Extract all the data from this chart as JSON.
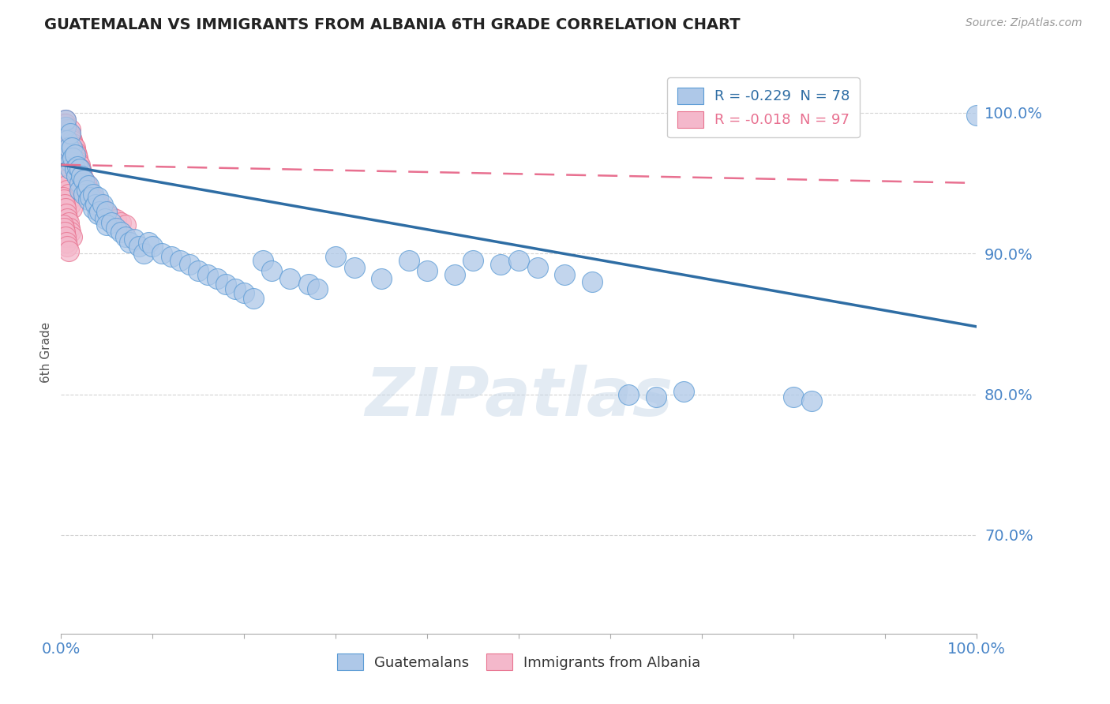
{
  "title": "GUATEMALAN VS IMMIGRANTS FROM ALBANIA 6TH GRADE CORRELATION CHART",
  "source": "Source: ZipAtlas.com",
  "ylabel": "6th Grade",
  "ytick_labels": [
    "70.0%",
    "80.0%",
    "90.0%",
    "100.0%"
  ],
  "ytick_values": [
    0.7,
    0.8,
    0.9,
    1.0
  ],
  "legend_blue_label": "R = -0.229  N = 78",
  "legend_pink_label": "R = -0.018  N = 97",
  "blue_color": "#aec8e8",
  "blue_edge": "#5b9bd5",
  "pink_color": "#f4b8cb",
  "pink_edge": "#e8728f",
  "blue_line_color": "#2e6da4",
  "pink_line_color": "#e87090",
  "watermark_color": "#c8d8e8",
  "xlim": [
    0.0,
    1.0
  ],
  "ylim": [
    0.63,
    1.03
  ],
  "blue_trend_x0": 0.0,
  "blue_trend_y0": 0.963,
  "blue_trend_x1": 1.0,
  "blue_trend_y1": 0.848,
  "pink_trend_x0": 0.0,
  "pink_trend_y0": 0.963,
  "pink_trend_x1": 1.0,
  "pink_trend_y1": 0.95,
  "blue_x": [
    0.005,
    0.005,
    0.005,
    0.007,
    0.008,
    0.01,
    0.01,
    0.01,
    0.012,
    0.013,
    0.015,
    0.015,
    0.017,
    0.018,
    0.02,
    0.02,
    0.02,
    0.022,
    0.025,
    0.025,
    0.028,
    0.03,
    0.03,
    0.032,
    0.035,
    0.035,
    0.038,
    0.04,
    0.04,
    0.042,
    0.045,
    0.048,
    0.05,
    0.05,
    0.055,
    0.06,
    0.065,
    0.07,
    0.075,
    0.08,
    0.085,
    0.09,
    0.095,
    0.1,
    0.11,
    0.12,
    0.13,
    0.14,
    0.15,
    0.16,
    0.17,
    0.18,
    0.19,
    0.2,
    0.21,
    0.22,
    0.23,
    0.25,
    0.27,
    0.28,
    0.3,
    0.32,
    0.35,
    0.38,
    0.4,
    0.43,
    0.45,
    0.48,
    0.5,
    0.52,
    0.55,
    0.58,
    0.62,
    0.65,
    0.68,
    0.8,
    0.82,
    1.0
  ],
  "blue_y": [
    0.97,
    0.99,
    0.995,
    0.98,
    0.975,
    0.985,
    0.965,
    0.96,
    0.975,
    0.968,
    0.97,
    0.96,
    0.955,
    0.962,
    0.96,
    0.95,
    0.945,
    0.955,
    0.952,
    0.942,
    0.945,
    0.948,
    0.938,
    0.94,
    0.942,
    0.932,
    0.935,
    0.94,
    0.928,
    0.93,
    0.935,
    0.925,
    0.93,
    0.92,
    0.922,
    0.918,
    0.915,
    0.912,
    0.908,
    0.91,
    0.905,
    0.9,
    0.908,
    0.905,
    0.9,
    0.898,
    0.895,
    0.892,
    0.888,
    0.885,
    0.882,
    0.878,
    0.875,
    0.872,
    0.868,
    0.895,
    0.888,
    0.882,
    0.878,
    0.875,
    0.898,
    0.89,
    0.882,
    0.895,
    0.888,
    0.885,
    0.895,
    0.892,
    0.895,
    0.89,
    0.885,
    0.88,
    0.8,
    0.798,
    0.802,
    0.798,
    0.795,
    0.998
  ],
  "pink_x": [
    0.002,
    0.002,
    0.002,
    0.003,
    0.003,
    0.003,
    0.003,
    0.003,
    0.004,
    0.004,
    0.004,
    0.004,
    0.005,
    0.005,
    0.005,
    0.005,
    0.005,
    0.005,
    0.005,
    0.005,
    0.005,
    0.006,
    0.006,
    0.006,
    0.006,
    0.007,
    0.007,
    0.007,
    0.008,
    0.008,
    0.008,
    0.009,
    0.009,
    0.01,
    0.01,
    0.01,
    0.01,
    0.011,
    0.011,
    0.012,
    0.012,
    0.013,
    0.013,
    0.014,
    0.015,
    0.015,
    0.016,
    0.017,
    0.018,
    0.019,
    0.02,
    0.021,
    0.022,
    0.023,
    0.025,
    0.027,
    0.028,
    0.03,
    0.032,
    0.035,
    0.038,
    0.04,
    0.042,
    0.045,
    0.048,
    0.05,
    0.055,
    0.06,
    0.065,
    0.07,
    0.002,
    0.003,
    0.004,
    0.005,
    0.006,
    0.007,
    0.008,
    0.009,
    0.01,
    0.012,
    0.002,
    0.003,
    0.004,
    0.005,
    0.006,
    0.007,
    0.008,
    0.009,
    0.01,
    0.012,
    0.002,
    0.003,
    0.004,
    0.005,
    0.006,
    0.007,
    0.008
  ],
  "pink_y": [
    0.99,
    0.985,
    0.982,
    0.992,
    0.988,
    0.982,
    0.978,
    0.975,
    0.99,
    0.985,
    0.98,
    0.975,
    0.995,
    0.992,
    0.988,
    0.985,
    0.982,
    0.978,
    0.975,
    0.972,
    0.968,
    0.99,
    0.985,
    0.98,
    0.975,
    0.988,
    0.983,
    0.978,
    0.985,
    0.98,
    0.975,
    0.982,
    0.977,
    0.988,
    0.984,
    0.979,
    0.974,
    0.982,
    0.977,
    0.98,
    0.975,
    0.978,
    0.973,
    0.976,
    0.975,
    0.97,
    0.972,
    0.97,
    0.968,
    0.965,
    0.963,
    0.96,
    0.958,
    0.955,
    0.952,
    0.95,
    0.948,
    0.945,
    0.942,
    0.94,
    0.938,
    0.936,
    0.934,
    0.932,
    0.93,
    0.928,
    0.926,
    0.924,
    0.922,
    0.92,
    0.96,
    0.958,
    0.955,
    0.952,
    0.948,
    0.945,
    0.942,
    0.938,
    0.935,
    0.932,
    0.94,
    0.938,
    0.935,
    0.932,
    0.928,
    0.925,
    0.922,
    0.918,
    0.915,
    0.912,
    0.92,
    0.918,
    0.915,
    0.912,
    0.908,
    0.905,
    0.902
  ]
}
